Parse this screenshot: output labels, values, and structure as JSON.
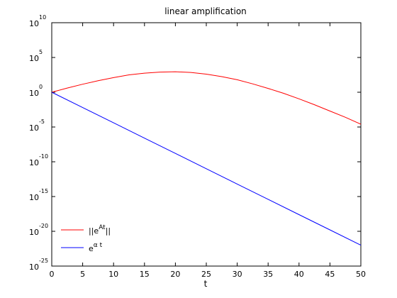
{
  "chart_data": {
    "type": "line",
    "title": "linear amplification",
    "xlabel": "t",
    "ylabel": "",
    "xlim": [
      0,
      50
    ],
    "ylim_exponent": [
      -25,
      10
    ],
    "yscale": "log",
    "grid": false,
    "legend_placement": "bottom-left",
    "x_ticks": [
      "0",
      "5",
      "10",
      "15",
      "20",
      "25",
      "30",
      "35",
      "40",
      "45",
      "50"
    ],
    "y_tick_base": "10",
    "y_tick_exponents": [
      "10",
      "5",
      "0",
      "-5",
      "-10",
      "-15",
      "-20",
      "-25"
    ],
    "series": [
      {
        "name": "||e^{At}||",
        "legend_main": "||e",
        "legend_sup": "At",
        "legend_tail": "||",
        "color": "#ff0000",
        "x": [
          0,
          2.5,
          5,
          7.5,
          10,
          12.5,
          15,
          17.5,
          20,
          22.5,
          25,
          27.5,
          30,
          32.5,
          35,
          37.5,
          40,
          42.5,
          45,
          47.5,
          50
        ],
        "log10_y": [
          0,
          0.6,
          1.15,
          1.65,
          2.1,
          2.5,
          2.75,
          2.9,
          2.95,
          2.85,
          2.6,
          2.25,
          1.8,
          1.2,
          0.55,
          -0.15,
          -0.95,
          -1.8,
          -2.7,
          -3.6,
          -4.6
        ]
      },
      {
        "name": "e^{α t}",
        "legend_main": "e",
        "legend_sup": "α t",
        "legend_tail": "",
        "color": "#0000ff",
        "x": [
          0,
          5,
          10,
          15,
          20,
          25,
          30,
          35,
          40,
          45,
          50
        ],
        "log10_y": [
          0,
          -2.2,
          -4.4,
          -6.6,
          -8.8,
          -11.0,
          -13.2,
          -15.4,
          -17.6,
          -19.8,
          -22.0
        ]
      }
    ]
  }
}
